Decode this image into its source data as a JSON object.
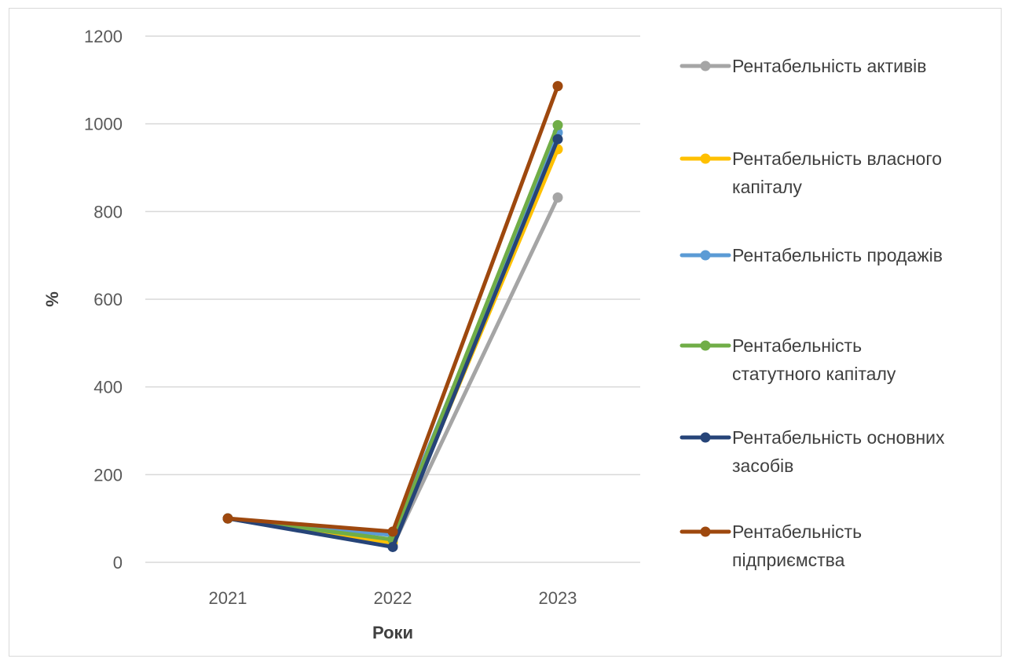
{
  "chart_data": {
    "type": "line",
    "categories": [
      "2021",
      "2022",
      "2023"
    ],
    "xlabel": "Роки",
    "ylabel": "%",
    "ylim": [
      0,
      1200
    ],
    "yticks": [
      0,
      200,
      400,
      600,
      800,
      1000,
      1200
    ],
    "grid": true,
    "legend_position": "right",
    "series": [
      {
        "name": "Рентабельність активів",
        "name_lines": [
          "Рентабельність активів"
        ],
        "color": "#a5a5a5",
        "values": [
          100,
          38,
          832
        ]
      },
      {
        "name": "Рентабельність власного капіталу",
        "name_lines": [
          "Рентабельність власного",
          "капіталу"
        ],
        "color": "#ffc000",
        "values": [
          100,
          45,
          942
        ]
      },
      {
        "name": "Рентабельність продажів",
        "name_lines": [
          "Рентабельність продажів"
        ],
        "color": "#5b9bd5",
        "values": [
          100,
          62,
          980
        ]
      },
      {
        "name": "Рентабельність статутного капіталу",
        "name_lines": [
          "Рентабельність",
          "статутного капіталу"
        ],
        "color": "#70ad47",
        "values": [
          100,
          52,
          997
        ]
      },
      {
        "name": "Рентабельність основних засобів",
        "name_lines": [
          "Рентабельність основних",
          "засобів"
        ],
        "color": "#264478",
        "values": [
          100,
          35,
          965
        ]
      },
      {
        "name": "Рентабельність підприємства",
        "name_lines": [
          "Рентабельність",
          "підприємства"
        ],
        "color": "#9e480e",
        "values": [
          100,
          70,
          1086
        ]
      }
    ]
  }
}
